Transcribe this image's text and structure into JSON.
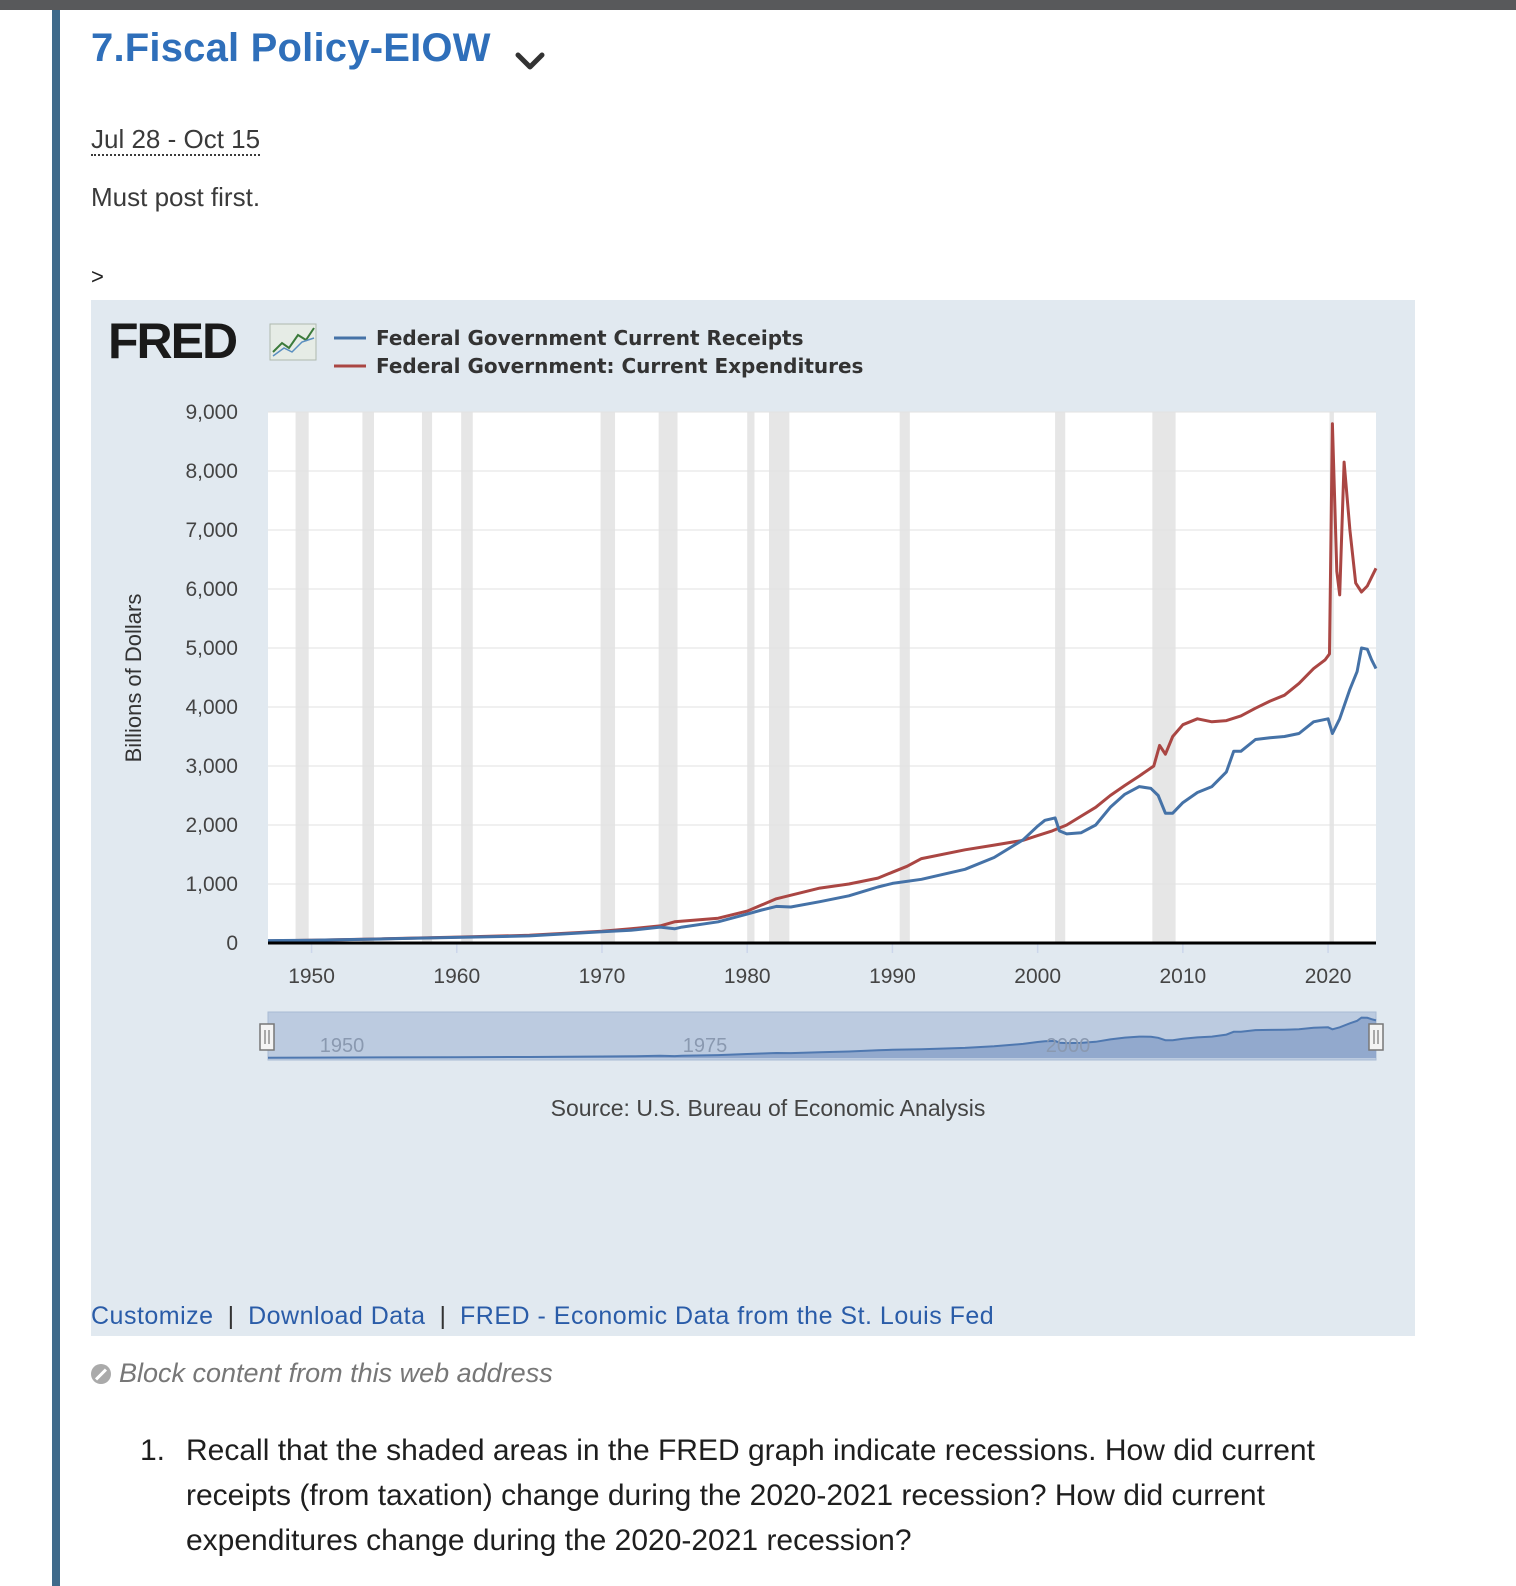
{
  "header": {
    "title": "7.Fiscal Policy-EIOW",
    "dates": "Jul 28 - Oct 15",
    "requirement": "Must post first.",
    "expand_marker": ">"
  },
  "fred": {
    "logo_text": "FRED",
    "source": "Source: U.S. Bureau of Economic Analysis",
    "navigator_labels": [
      "1950",
      "1975",
      "2000"
    ]
  },
  "links": {
    "customize": "Customize",
    "download": "Download Data",
    "fred_home": "FRED - Economic Data from the St. Louis Fed",
    "separator": "|"
  },
  "block_content": "Block content from this web address",
  "question": {
    "number": "1.",
    "text": "Recall that the shaded areas in the FRED graph indicate recessions. How did current receipts (from taxation) change during the 2020-2021 recession? How did current expenditures change during the 2020-2021 recession?"
  },
  "chart_data": {
    "type": "line",
    "title": "",
    "ylabel": "Billions of Dollars",
    "xlabel": "",
    "xlim": [
      1947,
      2023.3
    ],
    "ylim": [
      0,
      9000
    ],
    "x_ticks": [
      1950,
      1960,
      1970,
      1980,
      1990,
      2000,
      2010,
      2020
    ],
    "x_tick_labels": [
      "1950",
      "1960",
      "1970",
      "1980",
      "1990",
      "2000",
      "2010",
      "2020"
    ],
    "y_ticks": [
      0,
      1000,
      2000,
      3000,
      4000,
      5000,
      6000,
      7000,
      8000,
      9000
    ],
    "y_tick_labels": [
      "0",
      "1,000",
      "2,000",
      "3,000",
      "4,000",
      "5,000",
      "6,000",
      "7,000",
      "8,000",
      "9,000"
    ],
    "grid": true,
    "legend_position": "top-left",
    "recessions": [
      [
        1948.9,
        1949.8
      ],
      [
        1953.5,
        1954.3
      ],
      [
        1957.6,
        1958.3
      ],
      [
        1960.3,
        1961.1
      ],
      [
        1969.9,
        1970.9
      ],
      [
        1973.9,
        1975.2
      ],
      [
        1980.0,
        1980.5
      ],
      [
        1981.5,
        1982.9
      ],
      [
        1990.5,
        1991.2
      ],
      [
        2001.2,
        2001.9
      ],
      [
        2007.9,
        2009.5
      ],
      [
        2020.1,
        2020.4
      ]
    ],
    "series": [
      {
        "name": "Federal Government Current Receipts",
        "color": "#4572a7",
        "points": [
          [
            1947,
            40
          ],
          [
            1950,
            45
          ],
          [
            1955,
            70
          ],
          [
            1960,
            95
          ],
          [
            1965,
            120
          ],
          [
            1970,
            190
          ],
          [
            1972,
            215
          ],
          [
            1974,
            270
          ],
          [
            1975,
            240
          ],
          [
            1975.5,
            270
          ],
          [
            1978,
            360
          ],
          [
            1980,
            490
          ],
          [
            1981,
            560
          ],
          [
            1982,
            620
          ],
          [
            1983,
            610
          ],
          [
            1985,
            700
          ],
          [
            1987,
            800
          ],
          [
            1989,
            950
          ],
          [
            1990,
            1010
          ],
          [
            1992,
            1080
          ],
          [
            1995,
            1250
          ],
          [
            1997,
            1450
          ],
          [
            1999,
            1750
          ],
          [
            2000,
            1980
          ],
          [
            2000.5,
            2080
          ],
          [
            2001.2,
            2120
          ],
          [
            2001.5,
            1900
          ],
          [
            2002,
            1850
          ],
          [
            2003,
            1870
          ],
          [
            2004,
            2000
          ],
          [
            2005,
            2300
          ],
          [
            2006,
            2520
          ],
          [
            2007,
            2650
          ],
          [
            2007.8,
            2620
          ],
          [
            2008.3,
            2500
          ],
          [
            2008.8,
            2200
          ],
          [
            2009.3,
            2200
          ],
          [
            2010,
            2380
          ],
          [
            2011,
            2550
          ],
          [
            2012,
            2650
          ],
          [
            2013,
            2900
          ],
          [
            2013.5,
            3250
          ],
          [
            2014,
            3250
          ],
          [
            2015,
            3450
          ],
          [
            2016,
            3480
          ],
          [
            2017,
            3500
          ],
          [
            2018,
            3550
          ],
          [
            2019,
            3750
          ],
          [
            2020,
            3800
          ],
          [
            2020.3,
            3550
          ],
          [
            2020.8,
            3800
          ],
          [
            2021.5,
            4300
          ],
          [
            2022,
            4600
          ],
          [
            2022.3,
            5000
          ],
          [
            2022.7,
            4980
          ],
          [
            2023,
            4800
          ],
          [
            2023.3,
            4650
          ]
        ]
      },
      {
        "name": "Federal Government: Current Expenditures",
        "color": "#aa4643",
        "points": [
          [
            1947,
            35
          ],
          [
            1950,
            45
          ],
          [
            1955,
            72
          ],
          [
            1960,
            100
          ],
          [
            1965,
            130
          ],
          [
            1970,
            200
          ],
          [
            1972,
            240
          ],
          [
            1974,
            290
          ],
          [
            1975,
            360
          ],
          [
            1978,
            420
          ],
          [
            1980,
            540
          ],
          [
            1982,
            750
          ],
          [
            1985,
            930
          ],
          [
            1987,
            1000
          ],
          [
            1989,
            1100
          ],
          [
            1990,
            1200
          ],
          [
            1991,
            1300
          ],
          [
            1992,
            1430
          ],
          [
            1995,
            1580
          ],
          [
            1997,
            1660
          ],
          [
            1999,
            1740
          ],
          [
            2000,
            1820
          ],
          [
            2001,
            1900
          ],
          [
            2002,
            2000
          ],
          [
            2003,
            2150
          ],
          [
            2004,
            2300
          ],
          [
            2005,
            2500
          ],
          [
            2006,
            2670
          ],
          [
            2007,
            2830
          ],
          [
            2008,
            3000
          ],
          [
            2008.4,
            3350
          ],
          [
            2008.8,
            3200
          ],
          [
            2009.3,
            3500
          ],
          [
            2010,
            3700
          ],
          [
            2011,
            3800
          ],
          [
            2012,
            3750
          ],
          [
            2013,
            3770
          ],
          [
            2014,
            3850
          ],
          [
            2015,
            3980
          ],
          [
            2016,
            4100
          ],
          [
            2017,
            4200
          ],
          [
            2018,
            4400
          ],
          [
            2019,
            4650
          ],
          [
            2019.8,
            4800
          ],
          [
            2020.1,
            4900
          ],
          [
            2020.3,
            8800
          ],
          [
            2020.6,
            6300
          ],
          [
            2020.8,
            5900
          ],
          [
            2021.1,
            8150
          ],
          [
            2021.5,
            7000
          ],
          [
            2021.9,
            6100
          ],
          [
            2022.3,
            5950
          ],
          [
            2022.7,
            6050
          ],
          [
            2023,
            6200
          ],
          [
            2023.3,
            6350
          ]
        ]
      }
    ]
  }
}
